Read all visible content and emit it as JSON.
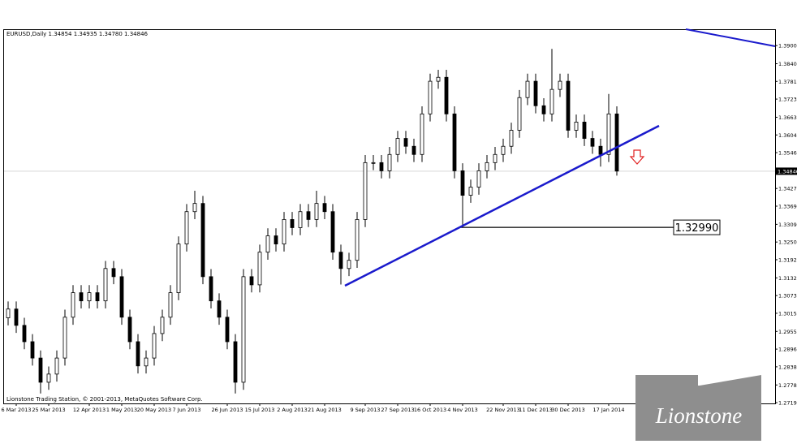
{
  "chart_data": {
    "type": "candlestick",
    "header": "EURUSD,Daily  1.34854 1.34935 1.34780 1.34846",
    "footer": "Lionstone Trading Station, © 2001-2013, MetaQuotes Software Corp.",
    "logo": "Lionstone",
    "ylim": [
      1.2717,
      1.3954
    ],
    "yticks": [
      {
        "value": 1.39,
        "label": "1.39000"
      },
      {
        "value": 1.384,
        "label": "1.38400"
      },
      1.37815,
      {
        "value": 1.3723,
        "label": "1.37230"
      },
      {
        "value": 1.3663,
        "label": "1.36630"
      },
      1.36045,
      {
        "value": 1.3546,
        "label": "1.35460"
      },
      1.34275,
      {
        "value": 1.3369,
        "label": "1.33690"
      },
      {
        "value": 1.3309,
        "label": "1.33090"
      },
      1.32505,
      {
        "value": 1.3192,
        "label": "1.31920"
      },
      {
        "value": 1.3132,
        "label": "1.31320"
      },
      1.30735,
      {
        "value": 1.3015,
        "label": "1.30150"
      },
      {
        "value": 1.2955,
        "label": "1.29550"
      },
      1.28965,
      {
        "value": 1.2838,
        "label": "1.28380"
      },
      {
        "value": 1.2778,
        "label": "1.27780"
      },
      1.27195
    ],
    "last_price": 1.34846,
    "level": {
      "value": 1.3299,
      "label": "1.32990"
    },
    "categories": [
      null,
      "6 Mar 2013",
      null,
      null,
      null,
      "25 Mar 2013",
      null,
      null,
      null,
      null,
      "12 Apr 2013",
      null,
      null,
      null,
      "1 May 2013",
      null,
      null,
      null,
      "20 May 2013",
      null,
      null,
      null,
      "7 Jun 2013",
      null,
      null,
      null,
      null,
      "26 Jun 2013",
      null,
      null,
      null,
      "15 Jul 2013",
      null,
      null,
      null,
      "2 Aug 2013",
      null,
      null,
      null,
      "21 Aug 2013",
      null,
      null,
      null,
      null,
      "9 Sep 2013",
      null,
      null,
      null,
      "27 Sep 2013",
      null,
      null,
      null,
      "16 Oct 2013",
      null,
      null,
      null,
      "4 Nov 2013",
      null,
      null,
      null,
      null,
      "22 Nov 2013",
      null,
      null,
      null,
      "11 Dec 2013",
      null,
      null,
      null,
      "30 Dec 2013",
      null,
      null,
      null,
      null,
      "17 Jan 2014",
      null
    ],
    "candles": [
      [
        1.3,
        1.3054,
        1.2975,
        1.3029
      ],
      [
        1.3029,
        1.3054,
        1.295,
        1.2975
      ],
      [
        1.2975,
        1.3,
        1.2896,
        1.2921
      ],
      [
        1.2921,
        1.2946,
        1.2842,
        1.2867
      ],
      [
        1.2867,
        1.2892,
        1.275,
        1.2787
      ],
      [
        1.2787,
        1.2839,
        1.2762,
        1.2814
      ],
      [
        1.2814,
        1.2892,
        1.2789,
        1.2867
      ],
      [
        1.2867,
        1.3027,
        1.2842,
        1.3002
      ],
      [
        1.3002,
        1.3108,
        1.2977,
        1.3083
      ],
      [
        1.3083,
        1.3108,
        1.3031,
        1.3056
      ],
      [
        1.3056,
        1.3108,
        1.3031,
        1.3083
      ],
      [
        1.3083,
        1.3108,
        1.3031,
        1.3056
      ],
      [
        1.3056,
        1.3188,
        1.3031,
        1.3163
      ],
      [
        1.3163,
        1.3188,
        1.3111,
        1.3136
      ],
      [
        1.3136,
        1.3161,
        1.2977,
        1.3002
      ],
      [
        1.3002,
        1.3027,
        1.2896,
        1.2921
      ],
      [
        1.2921,
        1.2946,
        1.2816,
        1.2841
      ],
      [
        1.2841,
        1.2892,
        1.2816,
        1.2867
      ],
      [
        1.2867,
        1.2973,
        1.2842,
        1.2948
      ],
      [
        1.2948,
        1.3027,
        1.2923,
        1.3002
      ],
      [
        1.3002,
        1.3108,
        1.2977,
        1.3083
      ],
      [
        1.3083,
        1.3269,
        1.3058,
        1.3244
      ],
      [
        1.3244,
        1.3376,
        1.3219,
        1.3351
      ],
      [
        1.3351,
        1.342,
        1.3326,
        1.3378
      ],
      [
        1.3378,
        1.3403,
        1.3111,
        1.3136
      ],
      [
        1.3136,
        1.3161,
        1.3031,
        1.3056
      ],
      [
        1.3056,
        1.3081,
        1.2977,
        1.3002
      ],
      [
        1.3002,
        1.3027,
        1.2896,
        1.2921
      ],
      [
        1.2921,
        1.2946,
        1.275,
        1.2787
      ],
      [
        1.2787,
        1.3161,
        1.2762,
        1.3136
      ],
      [
        1.3136,
        1.3161,
        1.3084,
        1.3109
      ],
      [
        1.3109,
        1.3242,
        1.3084,
        1.3217
      ],
      [
        1.3217,
        1.3296,
        1.3192,
        1.3271
      ],
      [
        1.3271,
        1.3296,
        1.3219,
        1.3244
      ],
      [
        1.3244,
        1.335,
        1.3219,
        1.3325
      ],
      [
        1.3325,
        1.335,
        1.3273,
        1.3298
      ],
      [
        1.3298,
        1.3376,
        1.3273,
        1.3351
      ],
      [
        1.3351,
        1.3376,
        1.33,
        1.3325
      ],
      [
        1.3325,
        1.342,
        1.33,
        1.3378
      ],
      [
        1.3378,
        1.3403,
        1.3326,
        1.3351
      ],
      [
        1.3351,
        1.3376,
        1.3192,
        1.3217
      ],
      [
        1.3217,
        1.3242,
        1.311,
        1.3163
      ],
      [
        1.3163,
        1.3215,
        1.3138,
        1.319
      ],
      [
        1.319,
        1.335,
        1.3165,
        1.3325
      ],
      [
        1.3325,
        1.3538,
        1.33,
        1.3513
      ],
      [
        1.3513,
        1.3538,
        1.3488,
        1.3513
      ],
      [
        1.3513,
        1.3538,
        1.3461,
        1.3486
      ],
      [
        1.3486,
        1.3565,
        1.3461,
        1.354
      ],
      [
        1.354,
        1.3618,
        1.3515,
        1.3593
      ],
      [
        1.3593,
        1.3618,
        1.3542,
        1.3567
      ],
      [
        1.3567,
        1.3592,
        1.3515,
        1.354
      ],
      [
        1.354,
        1.3699,
        1.3515,
        1.3674
      ],
      [
        1.3674,
        1.3807,
        1.3649,
        1.3782
      ],
      [
        1.3782,
        1.382,
        1.3757,
        1.3795
      ],
      [
        1.3795,
        1.382,
        1.3649,
        1.3674
      ],
      [
        1.3674,
        1.3699,
        1.3461,
        1.3486
      ],
      [
        1.3486,
        1.3511,
        1.33,
        1.3405
      ],
      [
        1.3405,
        1.3457,
        1.338,
        1.3432
      ],
      [
        1.3432,
        1.3511,
        1.3407,
        1.3486
      ],
      [
        1.3486,
        1.3538,
        1.3461,
        1.3513
      ],
      [
        1.3513,
        1.3565,
        1.3488,
        1.354
      ],
      [
        1.354,
        1.3592,
        1.3515,
        1.3567
      ],
      [
        1.3567,
        1.3645,
        1.3542,
        1.362
      ],
      [
        1.362,
        1.3753,
        1.3595,
        1.3728
      ],
      [
        1.3728,
        1.3807,
        1.3703,
        1.3782
      ],
      [
        1.3782,
        1.3807,
        1.3676,
        1.3701
      ],
      [
        1.3701,
        1.3726,
        1.3649,
        1.3674
      ],
      [
        1.3674,
        1.3889,
        1.3649,
        1.3755
      ],
      [
        1.3755,
        1.3807,
        1.373,
        1.3782
      ],
      [
        1.3782,
        1.3807,
        1.3595,
        1.362
      ],
      [
        1.362,
        1.3672,
        1.3595,
        1.3647
      ],
      [
        1.3647,
        1.3672,
        1.3568,
        1.3593
      ],
      [
        1.3593,
        1.3618,
        1.3542,
        1.3567
      ],
      [
        1.3567,
        1.3592,
        1.35,
        1.354
      ],
      [
        1.354,
        1.374,
        1.3515,
        1.3674
      ],
      [
        1.3674,
        1.3699,
        1.347,
        1.3485
      ]
    ]
  }
}
